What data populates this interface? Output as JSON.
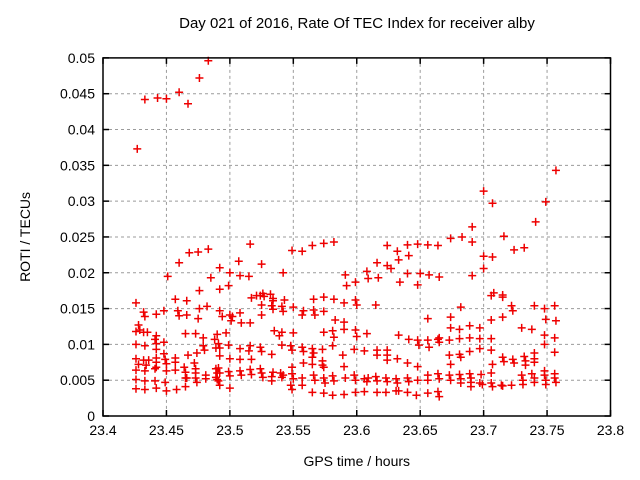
{
  "chart_data": {
    "type": "scatter",
    "title": "Day 021 of 2016, Rate Of TEC Index for receiver alby",
    "xlabel": "GPS time / hours",
    "ylabel": "ROTI / TECUs",
    "xlim": [
      23.4,
      23.8
    ],
    "ylim": [
      0,
      0.05
    ],
    "xtick_labels": [
      "23.4",
      "23.45",
      "23.5",
      "23.55",
      "23.6",
      "23.65",
      "23.7",
      "23.75",
      "23.8"
    ],
    "ytick_labels": [
      "0",
      "0.005",
      "0.01",
      "0.015",
      "0.02",
      "0.025",
      "0.03",
      "0.035",
      "0.04",
      "0.045",
      "0.05"
    ],
    "grid": true,
    "legend_position": "none",
    "marker": "plus",
    "colors": {
      "marker": "#ee0000",
      "grid": "#9b9b9b",
      "border": "#000000",
      "background": "#ffffff",
      "text": "#000000"
    },
    "points": [
      [
        23.427,
        0.0373
      ],
      [
        23.433,
        0.0442
      ],
      [
        23.443,
        0.0444
      ],
      [
        23.45,
        0.0443
      ],
      [
        23.46,
        0.0452
      ],
      [
        23.467,
        0.0436
      ],
      [
        23.476,
        0.0472
      ],
      [
        23.483,
        0.0496
      ],
      [
        23.7,
        0.0314
      ],
      [
        23.707,
        0.0297
      ],
      [
        23.691,
        0.0264
      ],
      [
        23.741,
        0.0271
      ],
      [
        23.749,
        0.0299
      ],
      [
        23.757,
        0.0343
      ],
      [
        23.451,
        0.0195
      ],
      [
        23.46,
        0.0214
      ],
      [
        23.468,
        0.0228
      ],
      [
        23.475,
        0.0229
      ],
      [
        23.476,
        0.0175
      ],
      [
        23.483,
        0.0233
      ],
      [
        23.485,
        0.0193
      ],
      [
        23.492,
        0.0207
      ],
      [
        23.492,
        0.0177
      ],
      [
        23.499,
        0.0182
      ],
      [
        23.5,
        0.02
      ],
      [
        23.507,
        0.0216
      ],
      [
        23.508,
        0.0196
      ],
      [
        23.515,
        0.0195
      ],
      [
        23.516,
        0.024
      ],
      [
        23.521,
        0.0168
      ],
      [
        23.525,
        0.0212
      ],
      [
        23.526,
        0.0171
      ],
      [
        23.542,
        0.02
      ],
      [
        23.549,
        0.0231
      ],
      [
        23.557,
        0.023
      ],
      [
        23.565,
        0.0238
      ],
      [
        23.574,
        0.0241
      ],
      [
        23.582,
        0.0243
      ],
      [
        23.591,
        0.0197
      ],
      [
        23.592,
        0.0182
      ],
      [
        23.599,
        0.0187
      ],
      [
        23.608,
        0.0202
      ],
      [
        23.609,
        0.0192
      ],
      [
        23.616,
        0.0214
      ],
      [
        23.617,
        0.0193
      ],
      [
        23.624,
        0.0238
      ],
      [
        23.624,
        0.021
      ],
      [
        23.627,
        0.0206
      ],
      [
        23.632,
        0.023
      ],
      [
        23.633,
        0.0218
      ],
      [
        23.634,
        0.0187
      ],
      [
        23.64,
        0.0239
      ],
      [
        23.64,
        0.0199
      ],
      [
        23.641,
        0.0224
      ],
      [
        23.648,
        0.024
      ],
      [
        23.648,
        0.0183
      ],
      [
        23.65,
        0.0199
      ],
      [
        23.656,
        0.0239
      ],
      [
        23.657,
        0.0197
      ],
      [
        23.664,
        0.0238
      ],
      [
        23.665,
        0.0194
      ],
      [
        23.674,
        0.0248
      ],
      [
        23.683,
        0.025
      ],
      [
        23.691,
        0.0243
      ],
      [
        23.691,
        0.0196
      ],
      [
        23.7,
        0.0223
      ],
      [
        23.7,
        0.0206
      ],
      [
        23.707,
        0.0222
      ],
      [
        23.708,
        0.0172
      ],
      [
        23.715,
        0.0169
      ],
      [
        23.716,
        0.0251
      ],
      [
        23.724,
        0.0232
      ],
      [
        23.732,
        0.0235
      ],
      [
        23.426,
        0.0158
      ],
      [
        23.432,
        0.0145
      ],
      [
        23.433,
        0.0139
      ],
      [
        23.442,
        0.0142
      ],
      [
        23.448,
        0.0147
      ],
      [
        23.457,
        0.0163
      ],
      [
        23.459,
        0.0147
      ],
      [
        23.46,
        0.014
      ],
      [
        23.466,
        0.0161
      ],
      [
        23.466,
        0.0141
      ],
      [
        23.475,
        0.0136
      ],
      [
        23.476,
        0.015
      ],
      [
        23.482,
        0.0153
      ],
      [
        23.492,
        0.0147
      ],
      [
        23.494,
        0.0139
      ],
      [
        23.5,
        0.0141
      ],
      [
        23.501,
        0.0133
      ],
      [
        23.502,
        0.0139
      ],
      [
        23.508,
        0.0144
      ],
      [
        23.509,
        0.013
      ],
      [
        23.516,
        0.013
      ],
      [
        23.517,
        0.0165
      ],
      [
        23.524,
        0.0168
      ],
      [
        23.525,
        0.0155
      ],
      [
        23.525,
        0.0141
      ],
      [
        23.527,
        0.0167
      ],
      [
        23.532,
        0.017
      ],
      [
        23.533,
        0.0154
      ],
      [
        23.534,
        0.0164
      ],
      [
        23.534,
        0.0161
      ],
      [
        23.534,
        0.0149
      ],
      [
        23.541,
        0.0153
      ],
      [
        23.542,
        0.0146
      ],
      [
        23.543,
        0.0162
      ],
      [
        23.55,
        0.0152
      ],
      [
        23.557,
        0.0141
      ],
      [
        23.558,
        0.0147
      ],
      [
        23.566,
        0.0163
      ],
      [
        23.566,
        0.0148
      ],
      [
        23.567,
        0.0141
      ],
      [
        23.574,
        0.0166
      ],
      [
        23.574,
        0.0146
      ],
      [
        23.582,
        0.0163
      ],
      [
        23.583,
        0.0134
      ],
      [
        23.59,
        0.0158
      ],
      [
        23.59,
        0.0131
      ],
      [
        23.599,
        0.0162
      ],
      [
        23.6,
        0.0155
      ],
      [
        23.615,
        0.0155
      ],
      [
        23.656,
        0.0136
      ],
      [
        23.674,
        0.0138
      ],
      [
        23.682,
        0.0152
      ],
      [
        23.706,
        0.0168
      ],
      [
        23.706,
        0.0134
      ],
      [
        23.715,
        0.0166
      ],
      [
        23.715,
        0.0138
      ],
      [
        23.722,
        0.0154
      ],
      [
        23.723,
        0.0147
      ],
      [
        23.74,
        0.0154
      ],
      [
        23.748,
        0.015
      ],
      [
        23.749,
        0.0135
      ],
      [
        23.756,
        0.0154
      ],
      [
        23.757,
        0.0133
      ],
      [
        23.426,
        0.0118
      ],
      [
        23.428,
        0.0127
      ],
      [
        23.429,
        0.012
      ],
      [
        23.432,
        0.0117
      ],
      [
        23.435,
        0.0117
      ],
      [
        23.441,
        0.0107
      ],
      [
        23.442,
        0.0112
      ],
      [
        23.465,
        0.0115
      ],
      [
        23.473,
        0.0115
      ],
      [
        23.479,
        0.0109
      ],
      [
        23.488,
        0.0107
      ],
      [
        23.49,
        0.0114
      ],
      [
        23.497,
        0.0116
      ],
      [
        23.535,
        0.0119
      ],
      [
        23.539,
        0.0112
      ],
      [
        23.541,
        0.0117
      ],
      [
        23.55,
        0.0116
      ],
      [
        23.574,
        0.0117
      ],
      [
        23.581,
        0.0119
      ],
      [
        23.582,
        0.011
      ],
      [
        23.59,
        0.0121
      ],
      [
        23.599,
        0.012
      ],
      [
        23.6,
        0.0111
      ],
      [
        23.608,
        0.0115
      ],
      [
        23.633,
        0.0113
      ],
      [
        23.641,
        0.0107
      ],
      [
        23.648,
        0.0106
      ],
      [
        23.656,
        0.0106
      ],
      [
        23.664,
        0.0107
      ],
      [
        23.665,
        0.0109
      ],
      [
        23.673,
        0.0106
      ],
      [
        23.674,
        0.0123
      ],
      [
        23.681,
        0.0121
      ],
      [
        23.681,
        0.0108
      ],
      [
        23.689,
        0.0126
      ],
      [
        23.689,
        0.0109
      ],
      [
        23.697,
        0.0123
      ],
      [
        23.697,
        0.0108
      ],
      [
        23.706,
        0.0108
      ],
      [
        23.73,
        0.0123
      ],
      [
        23.738,
        0.0121
      ],
      [
        23.748,
        0.0113
      ],
      [
        23.756,
        0.0109
      ],
      [
        23.426,
        0.01
      ],
      [
        23.433,
        0.0098
      ],
      [
        23.442,
        0.0101
      ],
      [
        23.442,
        0.0093
      ],
      [
        23.448,
        0.0103
      ],
      [
        23.467,
        0.0085
      ],
      [
        23.474,
        0.0088
      ],
      [
        23.479,
        0.0098
      ],
      [
        23.48,
        0.0092
      ],
      [
        23.489,
        0.0095
      ],
      [
        23.491,
        0.0101
      ],
      [
        23.492,
        0.0095
      ],
      [
        23.492,
        0.0084
      ],
      [
        23.499,
        0.0099
      ],
      [
        23.508,
        0.0094
      ],
      [
        23.515,
        0.0091
      ],
      [
        23.516,
        0.0098
      ],
      [
        23.524,
        0.0096
      ],
      [
        23.525,
        0.009
      ],
      [
        23.533,
        0.0086
      ],
      [
        23.541,
        0.0099
      ],
      [
        23.548,
        0.0098
      ],
      [
        23.549,
        0.0092
      ],
      [
        23.557,
        0.0096
      ],
      [
        23.558,
        0.009
      ],
      [
        23.565,
        0.0094
      ],
      [
        23.565,
        0.0082
      ],
      [
        23.566,
        0.0088
      ],
      [
        23.573,
        0.0093
      ],
      [
        23.581,
        0.0098
      ],
      [
        23.589,
        0.0085
      ],
      [
        23.598,
        0.0093
      ],
      [
        23.606,
        0.0091
      ],
      [
        23.616,
        0.0092
      ],
      [
        23.616,
        0.0085
      ],
      [
        23.624,
        0.0092
      ],
      [
        23.624,
        0.0085
      ],
      [
        23.649,
        0.0099
      ],
      [
        23.657,
        0.0096
      ],
      [
        23.665,
        0.0103
      ],
      [
        23.673,
        0.0085
      ],
      [
        23.681,
        0.0086
      ],
      [
        23.689,
        0.009
      ],
      [
        23.697,
        0.0094
      ],
      [
        23.706,
        0.0092
      ],
      [
        23.74,
        0.0088
      ],
      [
        23.748,
        0.01
      ],
      [
        23.756,
        0.0089
      ],
      [
        23.426,
        0.008
      ],
      [
        23.426,
        0.0064
      ],
      [
        23.428,
        0.0072
      ],
      [
        23.432,
        0.0078
      ],
      [
        23.433,
        0.0063
      ],
      [
        23.434,
        0.0071
      ],
      [
        23.436,
        0.0078
      ],
      [
        23.441,
        0.0066
      ],
      [
        23.442,
        0.0081
      ],
      [
        23.442,
        0.0075
      ],
      [
        23.442,
        0.0068
      ],
      [
        23.448,
        0.0087
      ],
      [
        23.449,
        0.0079
      ],
      [
        23.45,
        0.0073
      ],
      [
        23.45,
        0.0063
      ],
      [
        23.457,
        0.0081
      ],
      [
        23.457,
        0.0075
      ],
      [
        23.457,
        0.0064
      ],
      [
        23.464,
        0.0068
      ],
      [
        23.465,
        0.0061
      ],
      [
        23.472,
        0.0074
      ],
      [
        23.473,
        0.0066
      ],
      [
        23.473,
        0.006
      ],
      [
        23.489,
        0.0066
      ],
      [
        23.49,
        0.006
      ],
      [
        23.491,
        0.0067
      ],
      [
        23.492,
        0.006
      ],
      [
        23.499,
        0.0062
      ],
      [
        23.5,
        0.008
      ],
      [
        23.508,
        0.0079
      ],
      [
        23.508,
        0.0063
      ],
      [
        23.516,
        0.0065
      ],
      [
        23.517,
        0.0079
      ],
      [
        23.524,
        0.0066
      ],
      [
        23.525,
        0.006
      ],
      [
        23.54,
        0.006
      ],
      [
        23.549,
        0.0068
      ],
      [
        23.558,
        0.0074
      ],
      [
        23.565,
        0.0072
      ],
      [
        23.573,
        0.0077
      ],
      [
        23.573,
        0.0071
      ],
      [
        23.574,
        0.0068
      ],
      [
        23.59,
        0.0069
      ],
      [
        23.624,
        0.0078
      ],
      [
        23.632,
        0.008
      ],
      [
        23.64,
        0.0074
      ],
      [
        23.648,
        0.0069
      ],
      [
        23.674,
        0.0072
      ],
      [
        23.682,
        0.0082
      ],
      [
        23.706,
        0.006
      ],
      [
        23.707,
        0.0072
      ],
      [
        23.715,
        0.0082
      ],
      [
        23.716,
        0.0076
      ],
      [
        23.723,
        0.0079
      ],
      [
        23.724,
        0.0074
      ],
      [
        23.732,
        0.0083
      ],
      [
        23.733,
        0.0077
      ],
      [
        23.733,
        0.0071
      ],
      [
        23.74,
        0.008
      ],
      [
        23.74,
        0.0075
      ],
      [
        23.748,
        0.0063
      ],
      [
        23.426,
        0.0051
      ],
      [
        23.433,
        0.0049
      ],
      [
        23.441,
        0.0049
      ],
      [
        23.449,
        0.0047
      ],
      [
        23.465,
        0.0053
      ],
      [
        23.466,
        0.0053
      ],
      [
        23.473,
        0.0053
      ],
      [
        23.474,
        0.0047
      ],
      [
        23.481,
        0.0057
      ],
      [
        23.481,
        0.0052
      ],
      [
        23.489,
        0.0054
      ],
      [
        23.49,
        0.0051
      ],
      [
        23.491,
        0.0049
      ],
      [
        23.5,
        0.0056
      ],
      [
        23.509,
        0.0057
      ],
      [
        23.517,
        0.0058
      ],
      [
        23.526,
        0.0054
      ],
      [
        23.533,
        0.0055
      ],
      [
        23.533,
        0.0049
      ],
      [
        23.534,
        0.0061
      ],
      [
        23.541,
        0.0054
      ],
      [
        23.542,
        0.0057
      ],
      [
        23.549,
        0.0059
      ],
      [
        23.55,
        0.0052
      ],
      [
        23.557,
        0.0053
      ],
      [
        23.566,
        0.0057
      ],
      [
        23.567,
        0.005
      ],
      [
        23.574,
        0.0053
      ],
      [
        23.575,
        0.0046
      ],
      [
        23.581,
        0.0056
      ],
      [
        23.582,
        0.0049
      ],
      [
        23.591,
        0.0053
      ],
      [
        23.598,
        0.0057
      ],
      [
        23.599,
        0.005
      ],
      [
        23.606,
        0.0052
      ],
      [
        23.608,
        0.0048
      ],
      [
        23.609,
        0.0053
      ],
      [
        23.615,
        0.0055
      ],
      [
        23.616,
        0.0049
      ],
      [
        23.623,
        0.0053
      ],
      [
        23.624,
        0.0048
      ],
      [
        23.631,
        0.0052
      ],
      [
        23.632,
        0.0046
      ],
      [
        23.64,
        0.0053
      ],
      [
        23.641,
        0.0048
      ],
      [
        23.648,
        0.005
      ],
      [
        23.656,
        0.0057
      ],
      [
        23.656,
        0.005
      ],
      [
        23.664,
        0.0059
      ],
      [
        23.665,
        0.0052
      ],
      [
        23.673,
        0.0057
      ],
      [
        23.674,
        0.005
      ],
      [
        23.681,
        0.0058
      ],
      [
        23.682,
        0.0052
      ],
      [
        23.682,
        0.0046
      ],
      [
        23.689,
        0.0059
      ],
      [
        23.69,
        0.0053
      ],
      [
        23.69,
        0.0047
      ],
      [
        23.697,
        0.0046
      ],
      [
        23.698,
        0.0058
      ],
      [
        23.699,
        0.0044
      ],
      [
        23.706,
        0.0046
      ],
      [
        23.73,
        0.0057
      ],
      [
        23.731,
        0.005
      ],
      [
        23.738,
        0.0059
      ],
      [
        23.74,
        0.0053
      ],
      [
        23.74,
        0.0047
      ],
      [
        23.748,
        0.0057
      ],
      [
        23.749,
        0.005
      ],
      [
        23.749,
        0.0044
      ],
      [
        23.756,
        0.0059
      ],
      [
        23.756,
        0.0053
      ],
      [
        23.757,
        0.0047
      ],
      [
        23.426,
        0.0038
      ],
      [
        23.433,
        0.0037
      ],
      [
        23.442,
        0.0039
      ],
      [
        23.45,
        0.0035
      ],
      [
        23.458,
        0.0037
      ],
      [
        23.465,
        0.0041
      ],
      [
        23.492,
        0.0043
      ],
      [
        23.5,
        0.0039
      ],
      [
        23.548,
        0.0043
      ],
      [
        23.549,
        0.0037
      ],
      [
        23.557,
        0.0043
      ],
      [
        23.565,
        0.0033
      ],
      [
        23.574,
        0.0032
      ],
      [
        23.581,
        0.0029
      ],
      [
        23.59,
        0.003
      ],
      [
        23.599,
        0.0033
      ],
      [
        23.606,
        0.0034
      ],
      [
        23.616,
        0.0033
      ],
      [
        23.623,
        0.0033
      ],
      [
        23.631,
        0.0035
      ],
      [
        23.633,
        0.0035
      ],
      [
        23.64,
        0.0033
      ],
      [
        23.647,
        0.0029
      ],
      [
        23.656,
        0.0032
      ],
      [
        23.664,
        0.0034
      ],
      [
        23.665,
        0.0027
      ],
      [
        23.69,
        0.0041
      ],
      [
        23.707,
        0.0041
      ],
      [
        23.714,
        0.0043
      ],
      [
        23.715,
        0.0042
      ],
      [
        23.722,
        0.0043
      ],
      [
        23.731,
        0.0044
      ]
    ]
  }
}
